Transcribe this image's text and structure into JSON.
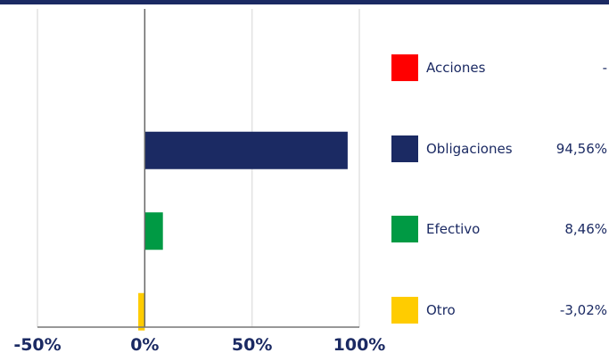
{
  "chart_data": {
    "type": "bar",
    "orientation": "horizontal",
    "categories": [
      "Acciones",
      "Obligaciones",
      "Efectivo",
      "Otro"
    ],
    "values": [
      0,
      94.56,
      8.46,
      -3.02
    ],
    "value_labels": [
      "-",
      "94,56%",
      "8,46%",
      "-3,02%"
    ],
    "colors": [
      "#ff0000",
      "#1b2a63",
      "#009a44",
      "#ffcc00"
    ],
    "xlim": [
      -50,
      100
    ],
    "xticks": [
      -50,
      0,
      50,
      100
    ],
    "xtick_labels": [
      "-50%",
      "0%",
      "50%",
      "100%"
    ],
    "grid": true,
    "legend_position": "right",
    "title": "",
    "xlabel": "",
    "ylabel": ""
  }
}
